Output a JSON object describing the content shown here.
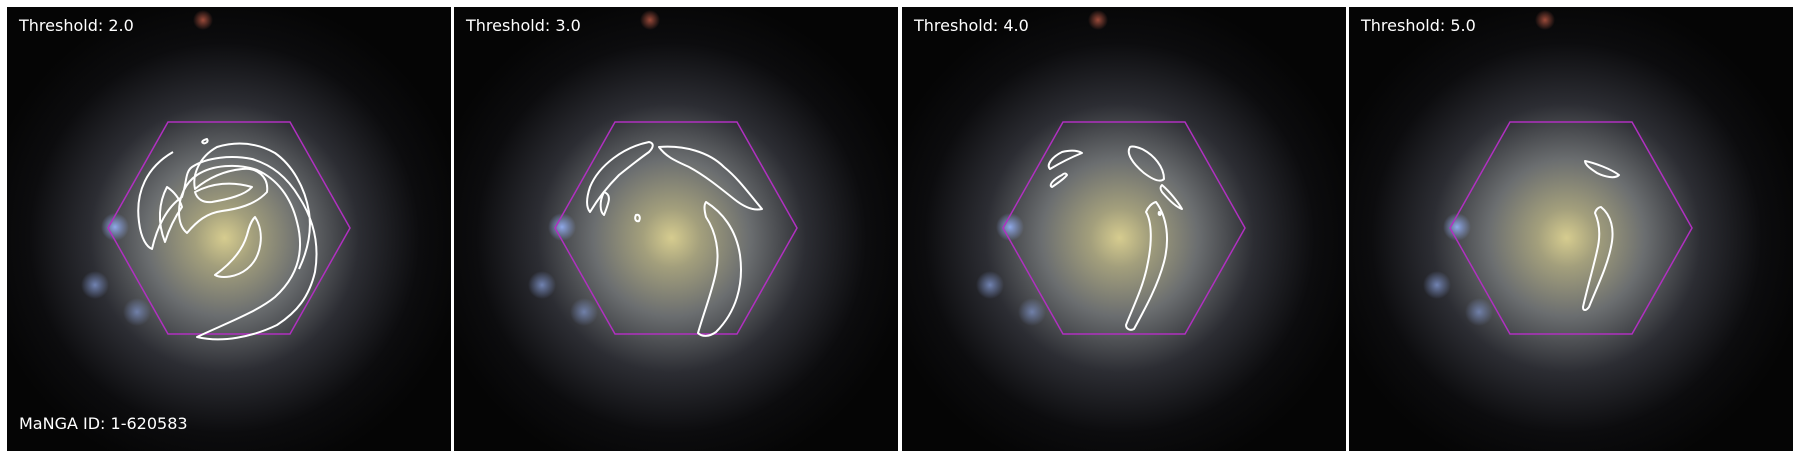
{
  "panels": [
    {
      "threshold_label": "Threshold: 2.0"
    },
    {
      "threshold_label": "Threshold: 3.0"
    },
    {
      "threshold_label": "Threshold: 4.0"
    },
    {
      "threshold_label": "Threshold: 5.0"
    }
  ],
  "manga_id_label": "MaNGA ID: 1-620583",
  "colors": {
    "background": "#050505",
    "contour": "#ffffff",
    "hexagon": "#b030c0",
    "galaxy_core": "#cfc48a",
    "galaxy_halo": "#6e7690"
  },
  "icons": [
    "galaxy-image",
    "ifu-hexagon-footprint",
    "spiral-arm-contour"
  ]
}
